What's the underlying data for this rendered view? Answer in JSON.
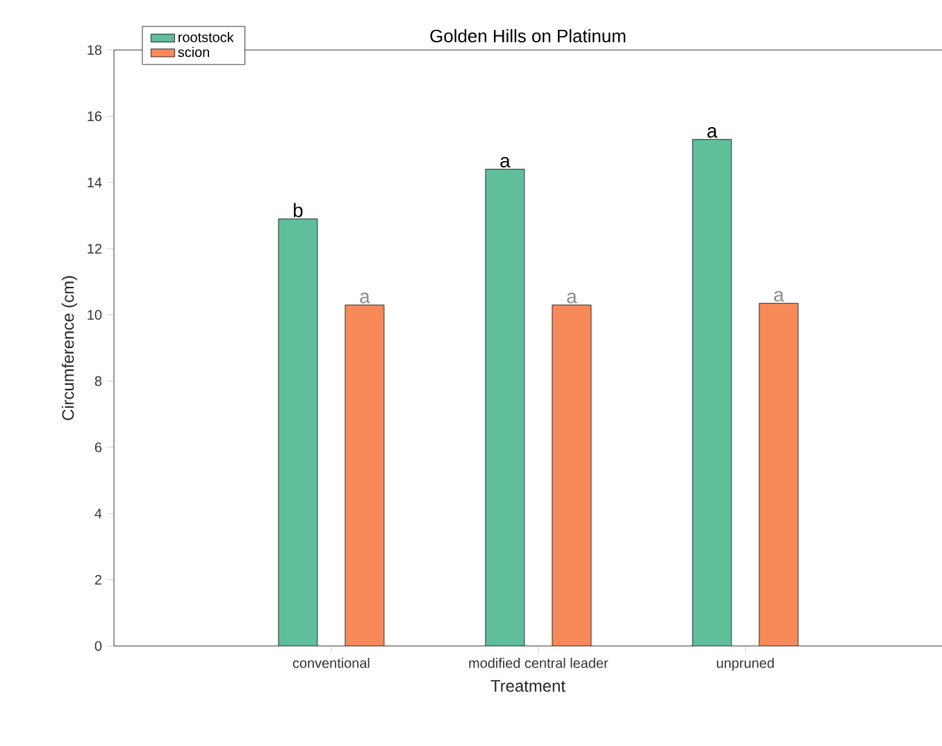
{
  "chart_data": {
    "type": "bar",
    "title": "Golden Hills on Platinum",
    "xlabel": "Treatment",
    "ylabel": "Circumference (cm)",
    "categories": [
      "conventional",
      "modified central leader",
      "unpruned"
    ],
    "series": [
      {
        "name": "rootstock",
        "color": "#5fbf9a",
        "values": [
          12.9,
          14.4,
          15.3
        ]
      },
      {
        "name": "scion",
        "color": "#f88a5a",
        "values": [
          10.3,
          10.3,
          10.35
        ]
      }
    ],
    "ylim": [
      0,
      18
    ],
    "yticks": [
      0,
      2,
      4,
      6,
      8,
      10,
      12,
      14,
      16,
      18
    ],
    "legend": "top left",
    "annotations": [
      "b",
      "a",
      "a",
      "a",
      "a",
      "a"
    ]
  }
}
